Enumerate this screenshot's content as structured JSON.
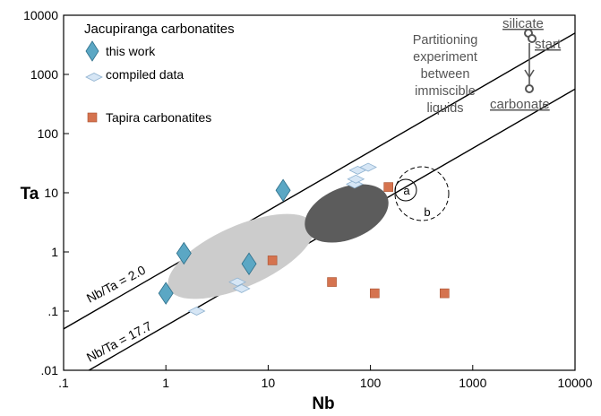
{
  "chart_data": {
    "type": "scatter",
    "xlabel": "Nb",
    "ylabel": "Ta",
    "x_log": true,
    "y_log": true,
    "xlim": [
      0.1,
      10000
    ],
    "ylim": [
      0.01,
      10000
    ],
    "x_ticks": [
      ".1",
      "1",
      "10",
      "100",
      "1000",
      "10000"
    ],
    "y_ticks": [
      ".01",
      ".1",
      "1",
      "10",
      "100",
      "1000",
      "10000"
    ],
    "legend_title": "Jacupiranga carbonatites",
    "series": [
      {
        "name": "this work",
        "marker": "diamond-large",
        "color": "#5ba7c4",
        "points": [
          [
            1.0,
            0.2
          ],
          [
            1.5,
            0.95
          ],
          [
            6.5,
            0.63
          ],
          [
            14,
            11
          ]
        ]
      },
      {
        "name": "compiled data",
        "marker": "diamond-small",
        "color": "#d6e6f5",
        "points": [
          [
            2.0,
            0.1
          ],
          [
            5.0,
            0.31
          ],
          [
            5.5,
            0.24
          ],
          [
            70,
            14
          ],
          [
            72,
            17
          ],
          [
            75,
            24
          ],
          [
            95,
            27
          ]
        ]
      },
      {
        "name": "Tapira carbonatites",
        "marker": "square",
        "color": "#d5734f",
        "points": [
          [
            11,
            0.72
          ],
          [
            42,
            0.31
          ],
          [
            110,
            0.2
          ],
          [
            530,
            0.2
          ],
          [
            150,
            12.5
          ]
        ]
      }
    ],
    "reference_lines": [
      {
        "label": "Nb/Ta = 2.0",
        "ratio": 2.0
      },
      {
        "label": "Nb/Ta = 17.7",
        "ratio": 17.7
      }
    ],
    "fields": [
      {
        "name": "light-gray-field",
        "color": "#cccccc"
      },
      {
        "name": "dark-gray-field",
        "color": "#5c5c5c"
      },
      {
        "name": "field-a",
        "label": "a"
      },
      {
        "name": "field-b",
        "label": "b"
      }
    ],
    "experiment": {
      "text_lines": [
        "Partitioning",
        "experiment",
        "between",
        "immiscible",
        "liquids"
      ],
      "silicate_label": "silicate",
      "start_label": "start",
      "carbonate_label": "carbonate"
    }
  }
}
